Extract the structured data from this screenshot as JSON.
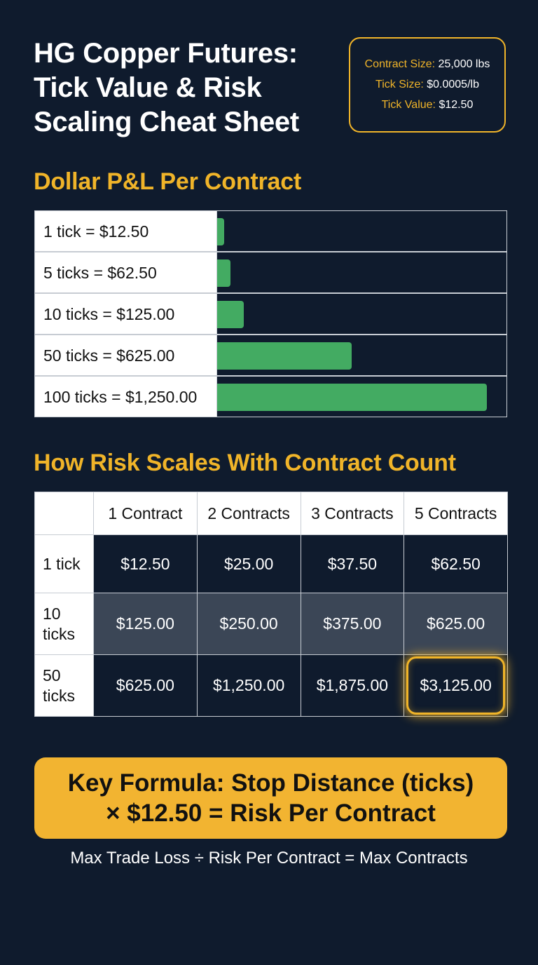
{
  "title_lines": [
    "HG Copper Futures:",
    "Tick Value & Risk",
    "Scaling Cheat Sheet"
  ],
  "specs": [
    {
      "label": "Contract Size:",
      "value": "25,000 lbs"
    },
    {
      "label": "Tick Size:",
      "value": "$0.0005/lb"
    },
    {
      "label": "Tick Value:",
      "value": "$12.50"
    }
  ],
  "chart_data": [
    {
      "type": "bar",
      "title": "Dollar P&L Per Contract",
      "categories": [
        "1 tick = $12.50",
        "5 ticks = $62.50",
        "10 ticks = $125.00",
        "50 ticks = $625.00",
        "100 ticks = $1,250.00"
      ],
      "values": [
        12.5,
        62.5,
        125,
        625,
        1250
      ],
      "xlim": [
        0,
        1300
      ],
      "grid": false
    },
    {
      "type": "table",
      "title": "How Risk Scales With Contract Count",
      "columns": [
        "1 Contract",
        "2 Contracts",
        "3 Contracts",
        "5 Contracts"
      ],
      "rows": [
        {
          "label": "1 tick",
          "values": [
            "$12.50",
            "$25.00",
            "$37.50",
            "$62.50"
          ]
        },
        {
          "label": "10 ticks",
          "values": [
            "$125.00",
            "$250.00",
            "$375.00",
            "$625.00"
          ]
        },
        {
          "label": "50 ticks",
          "values": [
            "$625.00",
            "$1,250.00",
            "$1,875.00",
            "$3,125.00"
          ]
        }
      ],
      "highlighted_cell": "$3,125.00"
    }
  ],
  "formula_lines": [
    "Key Formula: Stop Distance (ticks)",
    "× $12.50 = Risk Per Contract"
  ],
  "footnote": "Max Trade Loss ÷ Risk Per Contract = Max Contracts",
  "colors": {
    "background": "#0f1b2d",
    "accent": "#f0b429",
    "bar": "#43ab62",
    "highlight_row": "#3b4656"
  }
}
